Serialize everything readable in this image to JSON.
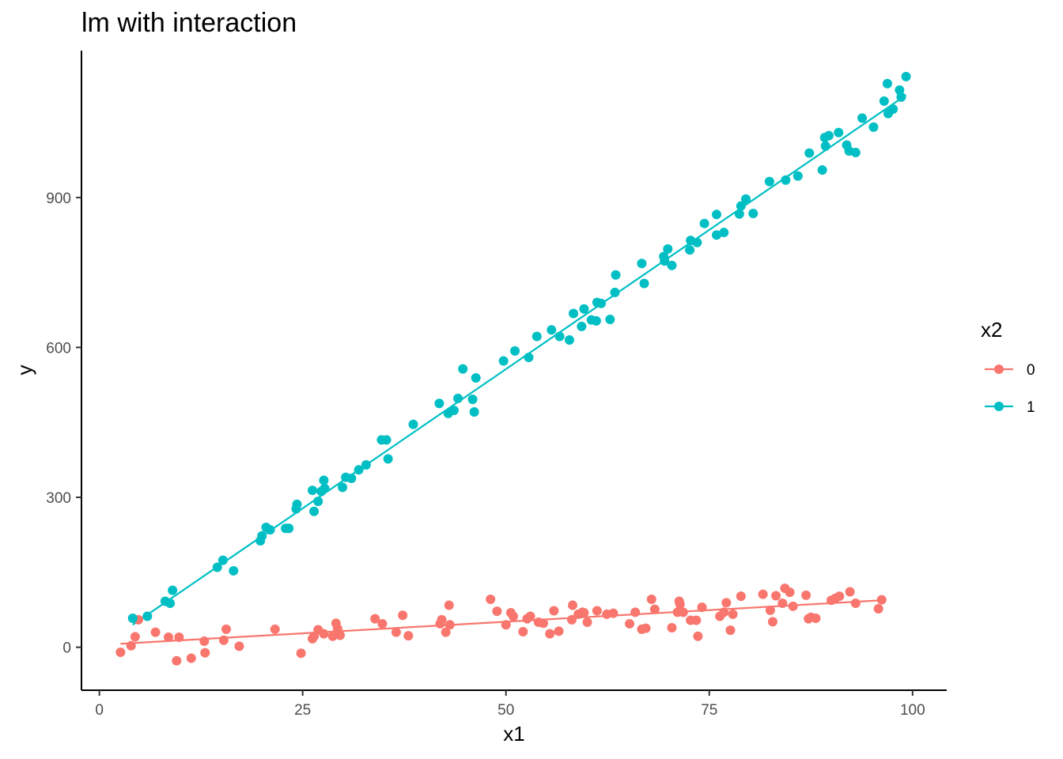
{
  "chart_data": {
    "type": "scatter",
    "title": "lm with interaction",
    "xlabel": "x1",
    "ylabel": "y",
    "xlim": [
      -2.2,
      104.2
    ],
    "ylim": [
      -86,
      1194
    ],
    "xticks": [
      0,
      25,
      50,
      75,
      100
    ],
    "yticks": [
      0,
      300,
      600,
      900
    ],
    "grid": false,
    "legend": {
      "title": "x2",
      "position": "right"
    },
    "series": [
      {
        "name": "0",
        "color": "#F8766D",
        "points": [
          [
            2.6,
            -10
          ],
          [
            3.9,
            3
          ],
          [
            4.4,
            21
          ],
          [
            4.8,
            55
          ],
          [
            6.9,
            30
          ],
          [
            8.5,
            20
          ],
          [
            9.5,
            -27
          ],
          [
            9.8,
            20
          ],
          [
            11.3,
            -22
          ],
          [
            12.9,
            12
          ],
          [
            13.0,
            -11
          ],
          [
            15.3,
            14
          ],
          [
            15.6,
            36
          ],
          [
            17.2,
            2
          ],
          [
            21.6,
            36
          ],
          [
            24.8,
            -12
          ],
          [
            26.2,
            17
          ],
          [
            26.4,
            22
          ],
          [
            26.9,
            35
          ],
          [
            27.6,
            27
          ],
          [
            28.7,
            22
          ],
          [
            29.1,
            48
          ],
          [
            29.3,
            37
          ],
          [
            29.6,
            24
          ],
          [
            33.9,
            57
          ],
          [
            34.8,
            47
          ],
          [
            36.5,
            30
          ],
          [
            37.3,
            64
          ],
          [
            38.0,
            23
          ],
          [
            41.9,
            47
          ],
          [
            42.1,
            55
          ],
          [
            42.6,
            30
          ],
          [
            43.0,
            84
          ],
          [
            43.1,
            45
          ],
          [
            48.1,
            96
          ],
          [
            48.9,
            72
          ],
          [
            50.0,
            45
          ],
          [
            50.6,
            69
          ],
          [
            50.9,
            62
          ],
          [
            52.1,
            31
          ],
          [
            52.6,
            57
          ],
          [
            53.0,
            62
          ],
          [
            54.0,
            50
          ],
          [
            54.6,
            48
          ],
          [
            55.4,
            27
          ],
          [
            55.9,
            73
          ],
          [
            56.5,
            32
          ],
          [
            58.1,
            55
          ],
          [
            58.2,
            84
          ],
          [
            58.9,
            66
          ],
          [
            59.4,
            70
          ],
          [
            59.6,
            69
          ],
          [
            60.0,
            50
          ],
          [
            61.2,
            73
          ],
          [
            62.4,
            66
          ],
          [
            63.2,
            68
          ],
          [
            65.2,
            47
          ],
          [
            65.9,
            70
          ],
          [
            66.7,
            36
          ],
          [
            67.2,
            38
          ],
          [
            67.9,
            96
          ],
          [
            68.3,
            76
          ],
          [
            70.4,
            39
          ],
          [
            71.1,
            70
          ],
          [
            71.3,
            92
          ],
          [
            71.4,
            86
          ],
          [
            71.8,
            70
          ],
          [
            72.7,
            54
          ],
          [
            73.4,
            54
          ],
          [
            73.6,
            22
          ],
          [
            74.1,
            80
          ],
          [
            76.3,
            62
          ],
          [
            76.8,
            70
          ],
          [
            77.1,
            89
          ],
          [
            77.6,
            34
          ],
          [
            77.9,
            66
          ],
          [
            78.9,
            102
          ],
          [
            81.6,
            106
          ],
          [
            82.5,
            74
          ],
          [
            82.8,
            51
          ],
          [
            83.2,
            103
          ],
          [
            84.0,
            88
          ],
          [
            84.3,
            118
          ],
          [
            84.9,
            110
          ],
          [
            85.3,
            82
          ],
          [
            86.9,
            104
          ],
          [
            87.2,
            57
          ],
          [
            87.5,
            60
          ],
          [
            88.1,
            58
          ],
          [
            90.0,
            94
          ],
          [
            90.5,
            98
          ],
          [
            91.0,
            102
          ],
          [
            92.3,
            111
          ],
          [
            93.0,
            88
          ],
          [
            95.8,
            77
          ],
          [
            96.2,
            95
          ]
        ]
      },
      {
        "name": "1",
        "color": "#00BFC4",
        "points": [
          [
            4.1,
            58
          ],
          [
            5.9,
            62
          ],
          [
            8.1,
            92
          ],
          [
            8.7,
            88
          ],
          [
            9.0,
            114
          ],
          [
            14.5,
            160
          ],
          [
            15.2,
            174
          ],
          [
            16.5,
            153
          ],
          [
            19.8,
            213
          ],
          [
            20.0,
            223
          ],
          [
            20.5,
            240
          ],
          [
            21.0,
            235
          ],
          [
            22.9,
            238
          ],
          [
            23.3,
            238
          ],
          [
            24.2,
            277
          ],
          [
            24.3,
            286
          ],
          [
            26.2,
            314
          ],
          [
            26.4,
            272
          ],
          [
            26.9,
            292
          ],
          [
            27.3,
            312
          ],
          [
            27.6,
            334
          ],
          [
            27.7,
            318
          ],
          [
            29.9,
            320
          ],
          [
            30.3,
            340
          ],
          [
            31.0,
            338
          ],
          [
            31.9,
            355
          ],
          [
            32.8,
            365
          ],
          [
            34.7,
            415
          ],
          [
            35.3,
            415
          ],
          [
            35.5,
            377
          ],
          [
            38.6,
            446
          ],
          [
            41.8,
            488
          ],
          [
            42.9,
            468
          ],
          [
            43.6,
            474
          ],
          [
            44.1,
            498
          ],
          [
            44.7,
            557
          ],
          [
            45.9,
            496
          ],
          [
            46.1,
            471
          ],
          [
            46.3,
            539
          ],
          [
            49.7,
            573
          ],
          [
            51.1,
            593
          ],
          [
            52.8,
            580
          ],
          [
            53.8,
            622
          ],
          [
            55.6,
            635
          ],
          [
            56.6,
            622
          ],
          [
            57.8,
            615
          ],
          [
            58.3,
            668
          ],
          [
            59.3,
            642
          ],
          [
            59.6,
            677
          ],
          [
            60.5,
            655
          ],
          [
            61.1,
            653
          ],
          [
            61.2,
            690
          ],
          [
            61.7,
            688
          ],
          [
            62.8,
            656
          ],
          [
            63.4,
            710
          ],
          [
            63.5,
            745
          ],
          [
            66.7,
            768
          ],
          [
            67.0,
            728
          ],
          [
            69.4,
            782
          ],
          [
            69.5,
            773
          ],
          [
            69.9,
            797
          ],
          [
            70.4,
            764
          ],
          [
            72.6,
            795
          ],
          [
            72.7,
            814
          ],
          [
            73.5,
            810
          ],
          [
            74.4,
            848
          ],
          [
            75.9,
            825
          ],
          [
            75.9,
            866
          ],
          [
            76.8,
            830
          ],
          [
            78.7,
            867
          ],
          [
            78.9,
            883
          ],
          [
            79.5,
            897
          ],
          [
            80.4,
            868
          ],
          [
            82.4,
            932
          ],
          [
            84.4,
            935
          ],
          [
            85.9,
            943
          ],
          [
            87.3,
            989
          ],
          [
            88.9,
            955
          ],
          [
            89.2,
            1020
          ],
          [
            89.3,
            1003
          ],
          [
            89.7,
            1024
          ],
          [
            90.9,
            1030
          ],
          [
            91.9,
            1005
          ],
          [
            92.2,
            993
          ],
          [
            93.0,
            990
          ],
          [
            93.8,
            1059
          ],
          [
            95.2,
            1041
          ],
          [
            96.5,
            1093
          ],
          [
            96.9,
            1128
          ],
          [
            97.0,
            1068
          ],
          [
            97.6,
            1077
          ],
          [
            98.4,
            1115
          ],
          [
            98.6,
            1101
          ],
          [
            99.2,
            1142
          ]
        ]
      }
    ],
    "fit_lines": [
      {
        "series": "0",
        "x": [
          2.6,
          96.2
        ],
        "y": [
          7,
          94
        ]
      },
      {
        "series": "1",
        "x": [
          4.1,
          99.2
        ],
        "y": [
          45,
          1105
        ]
      }
    ]
  }
}
